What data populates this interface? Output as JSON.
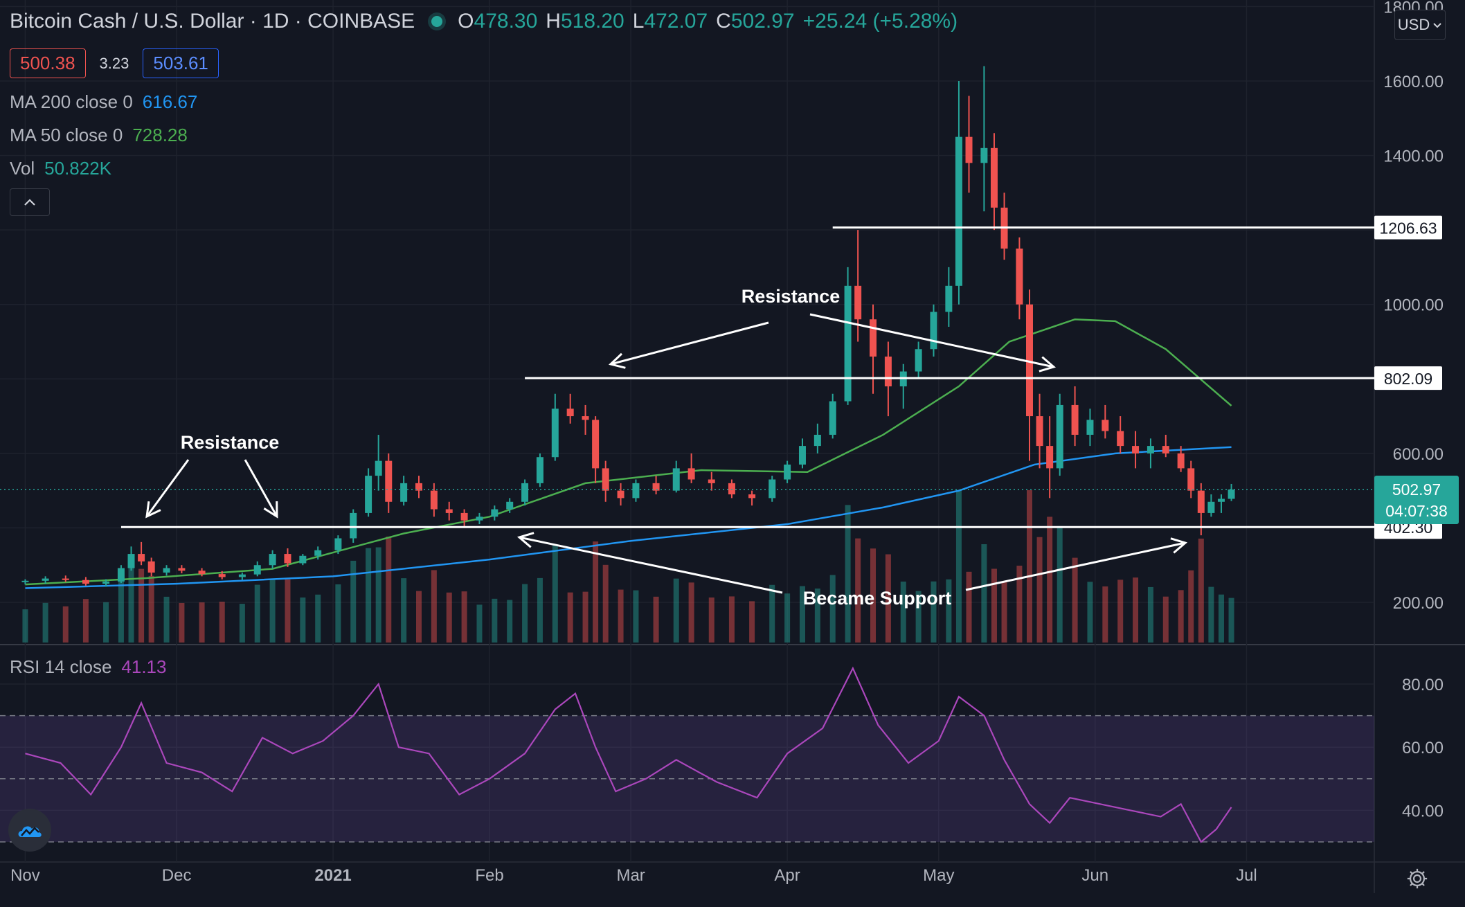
{
  "header": {
    "symbol": "Bitcoin Cash / U.S. Dollar · 1D · COINBASE",
    "o_label": "O",
    "o": "478.30",
    "h_label": "H",
    "h": "518.20",
    "l_label": "L",
    "l": "472.07",
    "c_label": "C",
    "c": "502.97",
    "change": "+25.24 (+5.28%)"
  },
  "quote": {
    "bid": "500.38",
    "spread": "3.23",
    "ask": "503.61"
  },
  "indicators": [
    {
      "label": "MA 200 close 0",
      "value": "616.67",
      "color": "#2196f3"
    },
    {
      "label": "MA 50 close 0",
      "value": "728.28",
      "color": "#4caf50"
    },
    {
      "label": "Vol",
      "value": "50.822K",
      "color": "#26a69a"
    }
  ],
  "currency_button": "USD",
  "collapse_icon": "chevron-up-icon",
  "settings_icon": "gear-icon",
  "logo_icon": "tradingview-cloud-icon",
  "colors": {
    "up": "#26a69a",
    "down": "#ef5350",
    "ma200": "#2196f3",
    "ma50": "#4caf50",
    "rsi": "#ab47bc",
    "bg": "#131722",
    "grid": "#1e222d"
  },
  "chart_data": {
    "type": "candlestick",
    "price_axis": {
      "ticks": [
        200,
        400,
        600,
        800,
        1000,
        1200,
        1400,
        1600,
        1800
      ],
      "labels": [
        "200.00",
        "",
        "600.00",
        "",
        "1000.00",
        "",
        "1400.00",
        "1600.00",
        "1800.00"
      ],
      "range": [
        80,
        1800
      ]
    },
    "time_axis": {
      "labels": [
        "Nov",
        "Dec",
        "2021",
        "Feb",
        "Mar",
        "Apr",
        "May",
        "Jun",
        "Jul"
      ],
      "dates": [
        "2020-11-01",
        "2020-12-01",
        "2021-01-01",
        "2021-02-01",
        "2021-03-01",
        "2021-04-01",
        "2021-05-01",
        "2021-06-01",
        "2021-07-01"
      ]
    },
    "levels": [
      {
        "value": 1206.63,
        "label": "1206.63",
        "from": "2021-04-10"
      },
      {
        "value": 802.09,
        "label": "802.09",
        "from": "2021-02-08"
      },
      {
        "value": 402.3,
        "label": "402.30",
        "from": "2020-11-20"
      }
    ],
    "last_price": {
      "value": 502.97,
      "label": "502.97",
      "countdown": "04:07:38"
    },
    "annotations": [
      "Resistance",
      "Resistance",
      "Became Support"
    ],
    "candles": [
      [
        "2020-11-01",
        255,
        262,
        248,
        258
      ],
      [
        "2020-11-05",
        258,
        270,
        250,
        264
      ],
      [
        "2020-11-09",
        264,
        272,
        255,
        260
      ],
      [
        "2020-11-13",
        260,
        268,
        245,
        250
      ],
      [
        "2020-11-17",
        250,
        262,
        242,
        256
      ],
      [
        "2020-11-20",
        256,
        300,
        252,
        292
      ],
      [
        "2020-11-22",
        292,
        350,
        285,
        330
      ],
      [
        "2020-11-24",
        330,
        362,
        300,
        310
      ],
      [
        "2020-11-26",
        310,
        320,
        270,
        280
      ],
      [
        "2020-11-29",
        280,
        300,
        272,
        292
      ],
      [
        "2020-12-02",
        292,
        300,
        278,
        285
      ],
      [
        "2020-12-06",
        285,
        292,
        270,
        276
      ],
      [
        "2020-12-10",
        276,
        284,
        262,
        268
      ],
      [
        "2020-12-14",
        268,
        280,
        260,
        275
      ],
      [
        "2020-12-17",
        275,
        310,
        270,
        300
      ],
      [
        "2020-12-20",
        300,
        340,
        290,
        330
      ],
      [
        "2020-12-23",
        330,
        345,
        295,
        305
      ],
      [
        "2020-12-26",
        305,
        330,
        300,
        325
      ],
      [
        "2020-12-29",
        325,
        350,
        315,
        340
      ],
      [
        "2021-01-02",
        340,
        380,
        330,
        372
      ],
      [
        "2021-01-05",
        372,
        450,
        360,
        440
      ],
      [
        "2021-01-08",
        440,
        560,
        430,
        540
      ],
      [
        "2021-01-10",
        540,
        650,
        500,
        580
      ],
      [
        "2021-01-12",
        580,
        600,
        440,
        470
      ],
      [
        "2021-01-15",
        470,
        540,
        460,
        520
      ],
      [
        "2021-01-18",
        520,
        540,
        480,
        500
      ],
      [
        "2021-01-21",
        500,
        520,
        430,
        450
      ],
      [
        "2021-01-24",
        450,
        470,
        420,
        440
      ],
      [
        "2021-01-27",
        440,
        450,
        400,
        420
      ],
      [
        "2021-01-30",
        420,
        440,
        410,
        430
      ],
      [
        "2021-02-02",
        430,
        460,
        420,
        450
      ],
      [
        "2021-02-05",
        450,
        480,
        440,
        470
      ],
      [
        "2021-02-08",
        470,
        530,
        460,
        520
      ],
      [
        "2021-02-11",
        520,
        600,
        510,
        590
      ],
      [
        "2021-02-14",
        590,
        760,
        580,
        720
      ],
      [
        "2021-02-17",
        720,
        760,
        680,
        700
      ],
      [
        "2021-02-20",
        700,
        730,
        650,
        690
      ],
      [
        "2021-02-22",
        690,
        700,
        520,
        560
      ],
      [
        "2021-02-24",
        560,
        580,
        470,
        500
      ],
      [
        "2021-02-27",
        500,
        520,
        460,
        480
      ],
      [
        "2021-03-02",
        480,
        530,
        470,
        520
      ],
      [
        "2021-03-06",
        520,
        540,
        490,
        500
      ],
      [
        "2021-03-10",
        500,
        580,
        495,
        560
      ],
      [
        "2021-03-13",
        560,
        600,
        520,
        530
      ],
      [
        "2021-03-17",
        530,
        550,
        500,
        520
      ],
      [
        "2021-03-21",
        520,
        530,
        480,
        490
      ],
      [
        "2021-03-25",
        490,
        500,
        460,
        480
      ],
      [
        "2021-03-29",
        480,
        540,
        470,
        530
      ],
      [
        "2021-04-01",
        530,
        580,
        520,
        570
      ],
      [
        "2021-04-04",
        570,
        640,
        560,
        620
      ],
      [
        "2021-04-07",
        620,
        680,
        600,
        650
      ],
      [
        "2021-04-10",
        650,
        760,
        640,
        740
      ],
      [
        "2021-04-13",
        740,
        1100,
        730,
        1050
      ],
      [
        "2021-04-15",
        1050,
        1200,
        900,
        960
      ],
      [
        "2021-04-18",
        960,
        1000,
        760,
        860
      ],
      [
        "2021-04-21",
        860,
        900,
        700,
        780
      ],
      [
        "2021-04-24",
        780,
        840,
        720,
        820
      ],
      [
        "2021-04-27",
        820,
        900,
        800,
        880
      ],
      [
        "2021-04-30",
        880,
        1000,
        860,
        980
      ],
      [
        "2021-05-03",
        980,
        1100,
        940,
        1050
      ],
      [
        "2021-05-05",
        1050,
        1600,
        1000,
        1450
      ],
      [
        "2021-05-07",
        1450,
        1560,
        1300,
        1380
      ],
      [
        "2021-05-10",
        1380,
        1640,
        1250,
        1420
      ],
      [
        "2021-05-12",
        1420,
        1460,
        1200,
        1260
      ],
      [
        "2021-05-14",
        1260,
        1300,
        1120,
        1150
      ],
      [
        "2021-05-17",
        1150,
        1180,
        960,
        1000
      ],
      [
        "2021-05-19",
        1000,
        1040,
        580,
        700
      ],
      [
        "2021-05-21",
        700,
        760,
        560,
        620
      ],
      [
        "2021-05-23",
        620,
        700,
        480,
        560
      ],
      [
        "2021-05-25",
        560,
        760,
        540,
        730
      ],
      [
        "2021-05-28",
        730,
        780,
        620,
        650
      ],
      [
        "2021-05-31",
        650,
        720,
        620,
        690
      ],
      [
        "2021-06-03",
        690,
        730,
        640,
        660
      ],
      [
        "2021-06-06",
        660,
        700,
        600,
        620
      ],
      [
        "2021-06-09",
        620,
        660,
        560,
        600
      ],
      [
        "2021-06-12",
        600,
        640,
        560,
        620
      ],
      [
        "2021-06-15",
        620,
        650,
        590,
        600
      ],
      [
        "2021-06-18",
        600,
        620,
        550,
        560
      ],
      [
        "2021-06-20",
        560,
        580,
        480,
        500
      ],
      [
        "2021-06-22",
        500,
        520,
        380,
        440
      ],
      [
        "2021-06-24",
        440,
        490,
        430,
        470
      ],
      [
        "2021-06-26",
        470,
        490,
        440,
        478
      ],
      [
        "2021-06-28",
        478,
        518,
        472,
        503
      ]
    ],
    "ma200": [
      [
        "2020-11-01",
        238
      ],
      [
        "2020-12-01",
        250
      ],
      [
        "2021-01-01",
        270
      ],
      [
        "2021-02-01",
        315
      ],
      [
        "2021-03-01",
        365
      ],
      [
        "2021-04-01",
        410
      ],
      [
        "2021-04-20",
        455
      ],
      [
        "2021-05-05",
        500
      ],
      [
        "2021-05-20",
        570
      ],
      [
        "2021-06-05",
        600
      ],
      [
        "2021-06-28",
        617
      ]
    ],
    "ma50": [
      [
        "2020-11-01",
        248
      ],
      [
        "2020-11-25",
        265
      ],
      [
        "2020-12-20",
        290
      ],
      [
        "2021-01-15",
        385
      ],
      [
        "2021-02-01",
        430
      ],
      [
        "2021-02-20",
        520
      ],
      [
        "2021-03-15",
        555
      ],
      [
        "2021-04-05",
        550
      ],
      [
        "2021-04-20",
        650
      ],
      [
        "2021-05-05",
        780
      ],
      [
        "2021-05-15",
        900
      ],
      [
        "2021-05-28",
        960
      ],
      [
        "2021-06-05",
        955
      ],
      [
        "2021-06-15",
        880
      ],
      [
        "2021-06-28",
        728
      ]
    ],
    "volume_axis_max": 1000,
    "rsi": {
      "label": "RSI 14 close",
      "value": "41.13",
      "ticks": [
        40,
        60,
        80
      ],
      "tick_labels": [
        "40.00",
        "60.00",
        "80.00"
      ],
      "upper": 70,
      "middle": 50,
      "lower": 30,
      "range": [
        25,
        92
      ],
      "points": [
        [
          "2020-11-01",
          58
        ],
        [
          "2020-11-08",
          55
        ],
        [
          "2020-11-14",
          45
        ],
        [
          "2020-11-20",
          60
        ],
        [
          "2020-11-24",
          74
        ],
        [
          "2020-11-29",
          55
        ],
        [
          "2020-12-06",
          52
        ],
        [
          "2020-12-12",
          46
        ],
        [
          "2020-12-18",
          63
        ],
        [
          "2020-12-24",
          58
        ],
        [
          "2020-12-30",
          62
        ],
        [
          "2021-01-05",
          70
        ],
        [
          "2021-01-10",
          80
        ],
        [
          "2021-01-14",
          60
        ],
        [
          "2021-01-20",
          58
        ],
        [
          "2021-01-26",
          45
        ],
        [
          "2021-02-01",
          50
        ],
        [
          "2021-02-08",
          58
        ],
        [
          "2021-02-14",
          72
        ],
        [
          "2021-02-18",
          77
        ],
        [
          "2021-02-22",
          60
        ],
        [
          "2021-02-26",
          46
        ],
        [
          "2021-03-04",
          50
        ],
        [
          "2021-03-10",
          56
        ],
        [
          "2021-03-18",
          49
        ],
        [
          "2021-03-26",
          44
        ],
        [
          "2021-04-01",
          58
        ],
        [
          "2021-04-08",
          66
        ],
        [
          "2021-04-14",
          85
        ],
        [
          "2021-04-19",
          67
        ],
        [
          "2021-04-25",
          55
        ],
        [
          "2021-05-01",
          62
        ],
        [
          "2021-05-05",
          76
        ],
        [
          "2021-05-10",
          70
        ],
        [
          "2021-05-14",
          56
        ],
        [
          "2021-05-19",
          42
        ],
        [
          "2021-05-23",
          36
        ],
        [
          "2021-05-27",
          44
        ],
        [
          "2021-06-02",
          42
        ],
        [
          "2021-06-08",
          40
        ],
        [
          "2021-06-14",
          38
        ],
        [
          "2021-06-18",
          42
        ],
        [
          "2021-06-22",
          30
        ],
        [
          "2021-06-25",
          34
        ],
        [
          "2021-06-28",
          41
        ]
      ]
    }
  }
}
